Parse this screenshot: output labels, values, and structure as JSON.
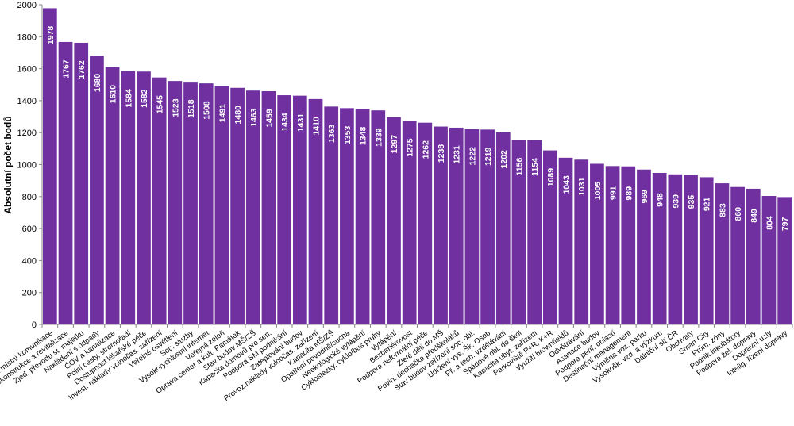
{
  "chart_data": {
    "type": "bar",
    "title": "",
    "xlabel": "",
    "ylabel": "Absolutní počet bodů",
    "ylim": [
      0,
      2000
    ],
    "yticks": [
      0,
      200,
      400,
      600,
      800,
      1000,
      1200,
      1400,
      1600,
      1800,
      2000
    ],
    "bar_color": "#7030a0",
    "value_label_color": "#ffffff",
    "grid": false,
    "categories": [
      "Silnice, chodníky a místní komunikace",
      "Rekonstrukce a revitalizace",
      "Zjed. převodu st. majetku",
      "Nakládání s odpady",
      "ČOV a kanalizace",
      "Polní cesty, stromořadí",
      "Dostupnost lékařské péče",
      "Invest. náklady volnočas. zařízení",
      "Veřejné osvětlení",
      "Soc. služby",
      "Vysokorychlostní internet",
      "Veřejná zeleň",
      "Oprava center a kult. Památek",
      "Stav budov MŠ/ZŠ",
      "Kapacita domovů pro sen.",
      "Podpora SM podnikání",
      "Zateplování budov",
      "Provoz.náklady volnočas. zařízení",
      "Kapacita MŠ/ZŠ",
      "Opatření povodně/sucha",
      "Neekologické vytápění",
      "Cyklostezky, cyklo/bus pruhy",
      "Vytápění",
      "Bezbariérovost",
      "Podpora neformální péče",
      "Zleté děti do MŠ",
      "Povin. dechačka předškoláků",
      "Stav budov zařízení soc. obl.",
      "Udržení vys. Šk. Osob",
      "Př. a tech. vzdělávání",
      "Spádové obl. do škol",
      "Kapacita ubyt. zařízení",
      "Parkoviště P+R, K+R",
      "Využití brownfieldů",
      "Odvětrávání",
      "Asanace budov",
      "Podpora perif. oblastí",
      "Destinační management",
      "Výměna voz. parku",
      "Vysokošk. vzd. a výzkum",
      "Dálniční síť ČR",
      "Obchvaty",
      "Smart City",
      "Prům. zóny",
      "Podnik.inkubátory",
      "Podpora žel. dopravy",
      "Dopravní uzly",
      "Intelig. řízení dopravy"
    ],
    "values": [
      1978,
      1767,
      1762,
      1680,
      1610,
      1584,
      1582,
      1545,
      1523,
      1518,
      1508,
      1491,
      1480,
      1463,
      1459,
      1434,
      1431,
      1410,
      1363,
      1353,
      1348,
      1339,
      1297,
      1275,
      1262,
      1238,
      1231,
      1222,
      1219,
      1202,
      1156,
      1154,
      1089,
      1043,
      1031,
      1005,
      991,
      989,
      969,
      948,
      939,
      935,
      921,
      883,
      860,
      849,
      804,
      797
    ]
  }
}
